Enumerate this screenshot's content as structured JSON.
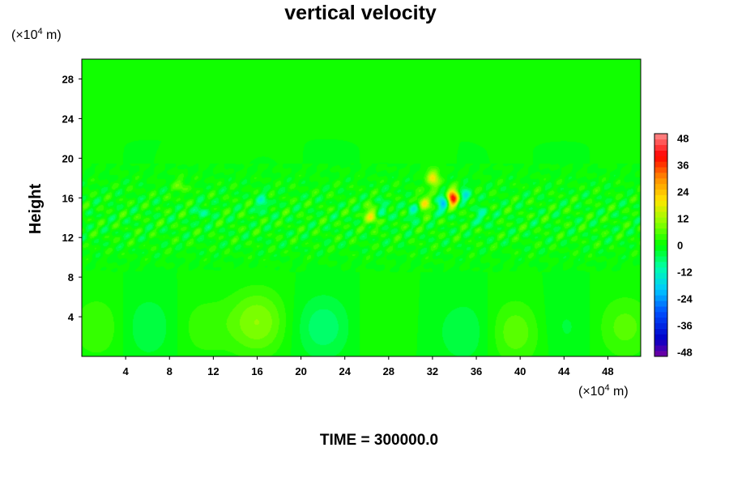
{
  "chart_data": {
    "type": "heatmap",
    "title": "vertical velocity",
    "ylabel": "Height",
    "xlabel": "",
    "x_unit": {
      "prefix": "(×10",
      "exp": "4",
      "suffix": " m)"
    },
    "y_unit": {
      "prefix": "(×10",
      "exp": "4",
      "suffix": " m)"
    },
    "xlim": [
      0,
      51
    ],
    "ylim": [
      0,
      30
    ],
    "x_ticks": [
      4,
      8,
      12,
      16,
      20,
      24,
      28,
      32,
      36,
      40,
      44,
      48
    ],
    "y_ticks": [
      4,
      8,
      12,
      16,
      20,
      24,
      28
    ],
    "colorbar": {
      "range": [
        -50,
        50
      ],
      "ticks": [
        48,
        36,
        24,
        12,
        0,
        -12,
        -24,
        -36,
        -48
      ],
      "levels": 40
    },
    "field_features": {
      "background": 0,
      "low_level_cells": [
        {
          "x": 1.5,
          "y": 3,
          "value": 5
        },
        {
          "x": 6,
          "y": 3,
          "value": -5
        },
        {
          "x": 11,
          "y": 3,
          "value": 4
        },
        {
          "x": 16,
          "y": 3.5,
          "value": 10
        },
        {
          "x": 22,
          "y": 3,
          "value": -7
        },
        {
          "x": 27,
          "y": 3,
          "value": 2
        },
        {
          "x": 35,
          "y": 2.5,
          "value": -5
        },
        {
          "x": 39.5,
          "y": 2.5,
          "value": 7
        },
        {
          "x": 44,
          "y": 3,
          "value": -3
        },
        {
          "x": 49.5,
          "y": 3,
          "value": 6
        }
      ],
      "upper_cells": [
        {
          "x": 33.8,
          "y": 16,
          "value": 40
        },
        {
          "x": 33.0,
          "y": 15.5,
          "value": -20
        },
        {
          "x": 34.9,
          "y": 16.3,
          "value": -12
        },
        {
          "x": 31.2,
          "y": 15.5,
          "value": 18
        },
        {
          "x": 30.2,
          "y": 14.8,
          "value": -10
        },
        {
          "x": 32.0,
          "y": 18.0,
          "value": 20
        },
        {
          "x": 26.4,
          "y": 14.2,
          "value": 18
        },
        {
          "x": 27.5,
          "y": 14.8,
          "value": -8
        },
        {
          "x": 16.5,
          "y": 15.5,
          "value": -10
        },
        {
          "x": 11.0,
          "y": 14.5,
          "value": -8
        },
        {
          "x": 36.5,
          "y": 14.2,
          "value": -9
        },
        {
          "x": 9.0,
          "y": 17.2,
          "value": 7
        }
      ]
    },
    "time_label": "TIME = 300000.0"
  }
}
